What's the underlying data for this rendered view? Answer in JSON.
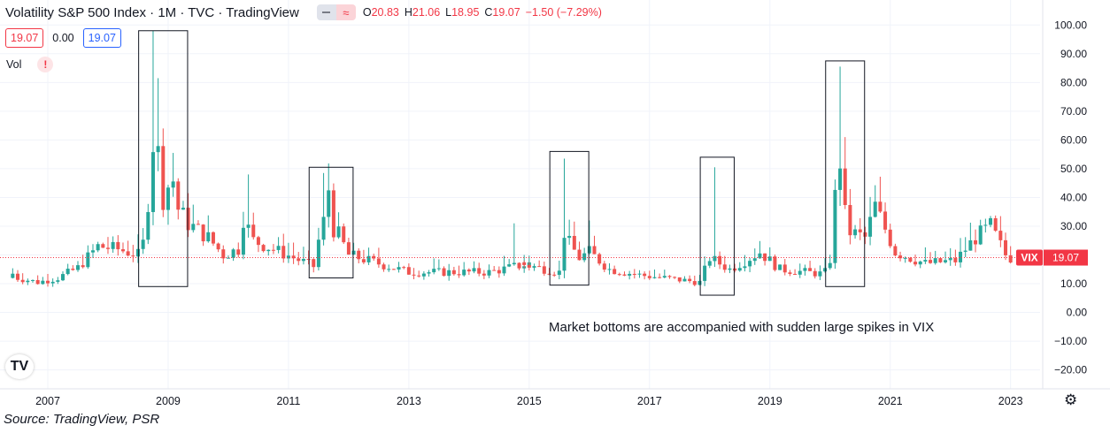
{
  "header": {
    "title": "Volatility S&P 500 Index · 1M · TVC · TradingView",
    "ohlc": {
      "o_label": "O",
      "o_value": "20.83",
      "h_label": "H",
      "h_value": "21.06",
      "l_label": "L",
      "l_value": "18.95",
      "c_label": "C",
      "c_value": "19.07",
      "change": "−1.50 (−7.29%)"
    },
    "sell_price": "19.07",
    "spread": "0.00",
    "buy_price": "19.07",
    "volume_label": "Vol",
    "volume_warning": "!",
    "logo_text": "TV"
  },
  "annotation": "Market bottoms are accompanied with sudden large spikes in VIX",
  "source": "Source: TradingView, PSR",
  "price_label": {
    "symbol": "VIX",
    "value": "19.07"
  },
  "colors": {
    "up": "#26a69a",
    "down": "#ef5350",
    "last_price": "#f23645",
    "grid": "#f0f3fa"
  },
  "icons": [
    "minus-icon",
    "wave-icon",
    "warning-icon",
    "tradingview-logo-icon",
    "gear-icon"
  ],
  "chart_data": {
    "type": "candlestick",
    "title": "Volatility S&P 500 Index",
    "interval": "1M",
    "ylim": [
      -25,
      103
    ],
    "y_ticks": [
      "100.00",
      "90.00",
      "80.00",
      "70.00",
      "60.00",
      "50.00",
      "40.00",
      "30.00",
      "20.00",
      "10.00",
      "0.00",
      "−10.00",
      "−20.00"
    ],
    "x_ticks": [
      "2007",
      "2009",
      "2011",
      "2013",
      "2015",
      "2017",
      "2019",
      "2021",
      "2023"
    ],
    "last_price": 19.07,
    "highlighted_spikes": [
      {
        "from": "2008-08",
        "to": "2009-04",
        "low": 9,
        "high": 98
      },
      {
        "from": "2011-06",
        "to": "2012-01",
        "low": 12,
        "high": 50.5
      },
      {
        "from": "2015-06",
        "to": "2015-12",
        "low": 9.5,
        "high": 56
      },
      {
        "from": "2017-12",
        "to": "2018-05",
        "low": 6,
        "high": 54
      },
      {
        "from": "2020-01",
        "to": "2020-07",
        "low": 9,
        "high": 87.5
      }
    ],
    "segments": [
      [
        "2006-06",
        2,
        15,
        12
      ],
      [
        "2006-08",
        4,
        12,
        10.5
      ],
      [
        "2006-12",
        4,
        10.5,
        12
      ],
      [
        "2007-04",
        4,
        12,
        15.5
      ],
      [
        "2007-08",
        4,
        15.5,
        23
      ],
      [
        "2007-12",
        4,
        23,
        22
      ],
      [
        "2008-04",
        4,
        22,
        20
      ],
      [
        "2008-08",
        1,
        20,
        24
      ],
      [
        "2008-09",
        1,
        24,
        39
      ],
      [
        "2008-10",
        1,
        39,
        59.5
      ],
      [
        "2008-11",
        1,
        59.5,
        55
      ],
      [
        "2008-12",
        1,
        55,
        40
      ],
      [
        "2009-01",
        1,
        40,
        44
      ],
      [
        "2009-02",
        1,
        44,
        46
      ],
      [
        "2009-03",
        1,
        46,
        36
      ],
      [
        "2009-04",
        2,
        36,
        31
      ],
      [
        "2009-06",
        4,
        31,
        26
      ],
      [
        "2009-10",
        3,
        26,
        20
      ],
      [
        "2010-01",
        3,
        20,
        22
      ],
      [
        "2010-04",
        1,
        22,
        33
      ],
      [
        "2010-05",
        2,
        33,
        25
      ],
      [
        "2010-07",
        4,
        25,
        22
      ],
      [
        "2010-11",
        8,
        22,
        16
      ],
      [
        "2011-07",
        1,
        16,
        25
      ],
      [
        "2011-08",
        1,
        25,
        31.5
      ],
      [
        "2011-09",
        1,
        31.5,
        43
      ],
      [
        "2011-10",
        1,
        43,
        29
      ],
      [
        "2011-11",
        1,
        29,
        27
      ],
      [
        "2011-12",
        2,
        27,
        20
      ],
      [
        "2012-02",
        6,
        20,
        17
      ],
      [
        "2012-08",
        6,
        17,
        14
      ],
      [
        "2013-02",
        8,
        14,
        14
      ],
      [
        "2013-10",
        8,
        14,
        14
      ],
      [
        "2014-06",
        8,
        14,
        17
      ],
      [
        "2014-12",
        8,
        17,
        14
      ],
      [
        "2015-08",
        1,
        14,
        28
      ],
      [
        "2015-09",
        1,
        28,
        24
      ],
      [
        "2015-10",
        2,
        24,
        19
      ],
      [
        "2015-12",
        2,
        19,
        21
      ],
      [
        "2016-02",
        4,
        21,
        15
      ],
      [
        "2016-06",
        6,
        15,
        13
      ],
      [
        "2016-12",
        12,
        13,
        10.5
      ],
      [
        "2017-12",
        2,
        10.5,
        19
      ],
      [
        "2018-02",
        4,
        19,
        15
      ],
      [
        "2018-06",
        6,
        15,
        21
      ],
      [
        "2018-12",
        4,
        21,
        15
      ],
      [
        "2019-04",
        8,
        15,
        13.5
      ],
      [
        "2019-12",
        1,
        13.5,
        14
      ],
      [
        "2020-01",
        1,
        14,
        18.5
      ],
      [
        "2020-02",
        1,
        18.5,
        40
      ],
      [
        "2020-03",
        1,
        40,
        53
      ],
      [
        "2020-04",
        1,
        53,
        34
      ],
      [
        "2020-05",
        1,
        34,
        28
      ],
      [
        "2020-06",
        3,
        28,
        26
      ],
      [
        "2020-09",
        2,
        26,
        37
      ],
      [
        "2020-11",
        4,
        37,
        21
      ],
      [
        "2021-03",
        6,
        21,
        17
      ],
      [
        "2021-09",
        6,
        17,
        18
      ],
      [
        "2022-03",
        4,
        18,
        26
      ],
      [
        "2022-07",
        3,
        26,
        30
      ],
      [
        "2022-10",
        3,
        30,
        20
      ],
      [
        "2023-01",
        1,
        20,
        19.07
      ]
    ],
    "big_wicks": {
      "2008-10": 98,
      "2008-11": 81.5,
      "2008-12": 64,
      "2010-05": 48,
      "2011-08": 48.5,
      "2015-08": 53.5,
      "2018-02": 50.5,
      "2020-03": 85.5,
      "2020-04": 61,
      "2014-10": 31,
      "2016-01": 32
    }
  }
}
